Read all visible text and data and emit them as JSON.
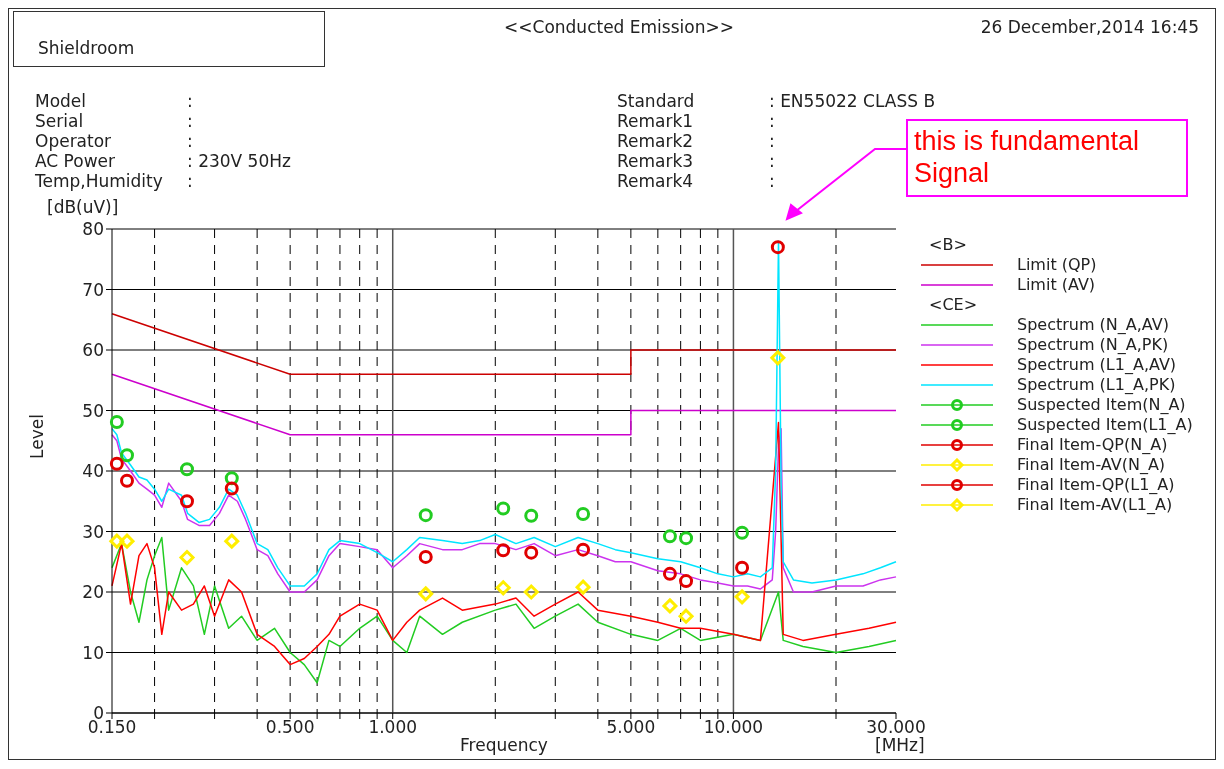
{
  "chart_data": {
    "type": "line",
    "title": "<<Conducted Emission>>",
    "xlabel": "Frequency",
    "ylabel": "Level",
    "legend_title": "<B>",
    "annotations": [
      "Shieldroom",
      "26 December,2014 16:45",
      "Model",
      "Serial",
      "Operator",
      "AC Power",
      "Temp,Humidity",
      ":",
      ":",
      ":",
      ": 230V 50Hz",
      ":",
      "Standard",
      "Remark1",
      "Remark2",
      "Remark3",
      "Remark4",
      ": EN55022 CLASS B",
      ":",
      ":",
      ":",
      ":",
      "[dB(uV)]",
      "[MHz]",
      "<CE>",
      "this is fundamental Signal"
    ],
    "log": "x",
    "xlim": [
      0.15,
      30
    ],
    "ylim": [
      0,
      80
    ],
    "xticks": [
      {
        "value": 0.15,
        "label": "0.150"
      },
      {
        "value": 0.2,
        "label": null
      },
      {
        "value": 0.3,
        "label": null
      },
      {
        "value": 0.4,
        "label": null
      },
      {
        "value": 0.5,
        "label": "0.500"
      },
      {
        "value": 0.6,
        "label": null
      },
      {
        "value": 0.7,
        "label": null
      },
      {
        "value": 0.8,
        "label": null
      },
      {
        "value": 0.9,
        "label": null
      },
      {
        "value": 1,
        "label": "1.000"
      },
      {
        "value": 2,
        "label": null
      },
      {
        "value": 3,
        "label": null
      },
      {
        "value": 4,
        "label": null
      },
      {
        "value": 5,
        "label": "5.000"
      },
      {
        "value": 6,
        "label": null
      },
      {
        "value": 7,
        "label": null
      },
      {
        "value": 8,
        "label": null
      },
      {
        "value": 9,
        "label": null
      },
      {
        "value": 10,
        "label": "10.000"
      },
      {
        "value": 20,
        "label": null
      },
      {
        "value": 30,
        "label": "30.000"
      }
    ],
    "yticks": [
      0,
      10,
      20,
      30,
      40,
      50,
      60,
      70,
      80
    ],
    "grid": true,
    "legend": "right",
    "series": [
      {
        "name": "Limit (QP)",
        "color": "#cc0000",
        "x": [
          0.15,
          0.5,
          5,
          5,
          30
        ],
        "values": [
          66,
          56,
          56,
          60,
          60
        ]
      },
      {
        "name": "Limit (AV)",
        "color": "#cc00cc",
        "x": [
          0.15,
          0.5,
          5,
          5,
          30
        ],
        "values": [
          56,
          46,
          46,
          50,
          50
        ]
      },
      {
        "name": "Spectrum (N_A,AV)",
        "color": "#22cc22",
        "x": [
          0.15,
          0.16,
          0.17,
          0.18,
          0.19,
          0.2,
          0.21,
          0.22,
          0.24,
          0.26,
          0.28,
          0.3,
          0.33,
          0.36,
          0.4,
          0.45,
          0.5,
          0.55,
          0.6,
          0.65,
          0.7,
          0.8,
          0.9,
          1.0,
          1.1,
          1.2,
          1.4,
          1.6,
          2.0,
          2.3,
          2.6,
          3.0,
          3.5,
          4,
          5,
          6,
          7,
          8,
          10,
          12,
          13.56,
          14,
          16,
          20,
          25,
          30
        ],
        "values": [
          24,
          28,
          20,
          15,
          22,
          26,
          29,
          17,
          24,
          21,
          13,
          21,
          14,
          16,
          12,
          14,
          10,
          8,
          5,
          12,
          11,
          14,
          16,
          12,
          10,
          16,
          13,
          15,
          17,
          18,
          14,
          16,
          18,
          15,
          13,
          12,
          14,
          12,
          13,
          12,
          20,
          12,
          11,
          10,
          11,
          12
        ]
      },
      {
        "name": "Spectrum (N_A,PK)",
        "color": "#cc33ee",
        "x": [
          0.15,
          0.155,
          0.16,
          0.17,
          0.18,
          0.19,
          0.2,
          0.21,
          0.22,
          0.24,
          0.25,
          0.27,
          0.29,
          0.31,
          0.33,
          0.35,
          0.37,
          0.4,
          0.43,
          0.46,
          0.5,
          0.55,
          0.6,
          0.65,
          0.7,
          0.8,
          0.9,
          1.0,
          1.1,
          1.2,
          1.4,
          1.6,
          1.8,
          2.0,
          2.3,
          2.6,
          3.0,
          3.5,
          4.0,
          4.5,
          5,
          6,
          7,
          8,
          9,
          10,
          11,
          12,
          13,
          13.3,
          13.56,
          13.8,
          14,
          15,
          17,
          20,
          24,
          27,
          30
        ],
        "values": [
          46,
          45,
          42,
          40,
          38,
          37,
          36,
          34,
          38,
          35,
          32,
          31,
          31,
          33,
          36,
          35,
          32,
          27,
          26,
          23,
          20,
          20,
          22,
          26,
          28,
          27.5,
          27,
          24,
          26,
          28,
          27,
          27,
          28,
          28,
          27,
          28,
          26,
          27,
          26,
          25,
          25,
          23.5,
          23,
          22,
          21.5,
          21,
          21,
          20.5,
          22,
          30,
          44,
          47,
          24,
          20,
          20,
          21,
          21,
          22,
          22.5
        ]
      },
      {
        "name": "Spectrum (L1_A,AV)",
        "color": "#ff0000",
        "x": [
          0.15,
          0.16,
          0.17,
          0.18,
          0.19,
          0.2,
          0.21,
          0.22,
          0.24,
          0.26,
          0.28,
          0.3,
          0.33,
          0.36,
          0.4,
          0.45,
          0.5,
          0.55,
          0.6,
          0.65,
          0.7,
          0.8,
          0.9,
          1.0,
          1.1,
          1.2,
          1.4,
          1.6,
          2.0,
          2.3,
          2.6,
          3.0,
          3.5,
          4,
          5,
          6,
          7,
          8,
          10,
          12,
          13.56,
          14,
          16,
          20,
          25,
          30
        ],
        "values": [
          21,
          28,
          18,
          26,
          28,
          24,
          13,
          20,
          17,
          18,
          21,
          16,
          22,
          20,
          13,
          11,
          8,
          9,
          11,
          13,
          16,
          18,
          17,
          12,
          15,
          17,
          19,
          17,
          18,
          19,
          16,
          18,
          20,
          17,
          16,
          15,
          14,
          14,
          13,
          12,
          48,
          13,
          12,
          13,
          14,
          15
        ]
      },
      {
        "name": "Spectrum (L1_A,PK)",
        "color": "#00e5ff",
        "x": [
          0.15,
          0.155,
          0.16,
          0.17,
          0.18,
          0.19,
          0.2,
          0.21,
          0.22,
          0.24,
          0.25,
          0.27,
          0.29,
          0.31,
          0.33,
          0.35,
          0.37,
          0.4,
          0.43,
          0.46,
          0.5,
          0.55,
          0.6,
          0.65,
          0.7,
          0.8,
          0.9,
          1.0,
          1.1,
          1.2,
          1.4,
          1.6,
          1.8,
          2.0,
          2.3,
          2.6,
          3.0,
          3.5,
          4.0,
          4.5,
          5,
          6,
          7,
          8,
          9,
          10,
          11,
          12,
          13,
          13.3,
          13.56,
          13.8,
          14,
          15,
          17,
          20,
          24,
          27,
          30
        ],
        "values": [
          47,
          46,
          43,
          41,
          39,
          38.5,
          37,
          35,
          37,
          36,
          33,
          31.5,
          32,
          34,
          37,
          36,
          33,
          28,
          27,
          24,
          21,
          21,
          23,
          27,
          28.5,
          28,
          26.5,
          25,
          27,
          29,
          28.5,
          28,
          28.5,
          29.5,
          28,
          29,
          27.5,
          29,
          28,
          27,
          26.5,
          25.5,
          25,
          24,
          23,
          22.5,
          23,
          22.5,
          24,
          40,
          78,
          38,
          25,
          22,
          21.5,
          22,
          23,
          24,
          25
        ]
      },
      {
        "name": "Suspected Item(N_A)",
        "type": "scatter",
        "marker": "circle",
        "color": "#22cc22",
        "x": [
          1.25,
          2.11,
          2.55,
          3.62,
          6.51,
          7.26,
          10.6
        ],
        "values": [
          32.7,
          33.8,
          32.6,
          32.9,
          29.2,
          28.9,
          29.8
        ]
      },
      {
        "name": "Suspected Item(L1_A)",
        "type": "scatter",
        "marker": "circle",
        "color": "#22cc22",
        "x": [
          0.155,
          0.166,
          0.249,
          0.337
        ],
        "values": [
          48.1,
          42.6,
          40.3,
          38.8
        ]
      },
      {
        "name": "Final Item-QP(N_A)",
        "type": "scatter",
        "marker": "circle",
        "color": "#e00000",
        "x": [
          1.25,
          2.11,
          2.55,
          3.62,
          6.51,
          7.26,
          10.6
        ],
        "values": [
          25.8,
          26.9,
          26.5,
          27,
          23,
          21.8,
          24
        ]
      },
      {
        "name": "Final Item-AV(N_A)",
        "type": "scatter",
        "marker": "diamond",
        "color": "#ffee00",
        "x": [
          1.25,
          2.11,
          2.55,
          3.62,
          6.51,
          7.26,
          10.6
        ],
        "values": [
          19.7,
          20.7,
          20,
          20.8,
          17.7,
          16,
          19.2
        ]
      },
      {
        "name": "Final Item-QP(L1_A)",
        "type": "scatter",
        "marker": "circle",
        "color": "#e00000",
        "x": [
          0.155,
          0.166,
          0.249,
          0.337,
          13.5
        ],
        "values": [
          41.2,
          38.4,
          35,
          37.1,
          77
        ]
      },
      {
        "name": "Final Item-AV(L1_A)",
        "type": "scatter",
        "marker": "diamond",
        "color": "#ffee00",
        "x": [
          0.155,
          0.166,
          0.249,
          0.337,
          13.5
        ],
        "values": [
          28.4,
          28.4,
          25.7,
          28.4,
          58.7
        ]
      }
    ]
  }
}
